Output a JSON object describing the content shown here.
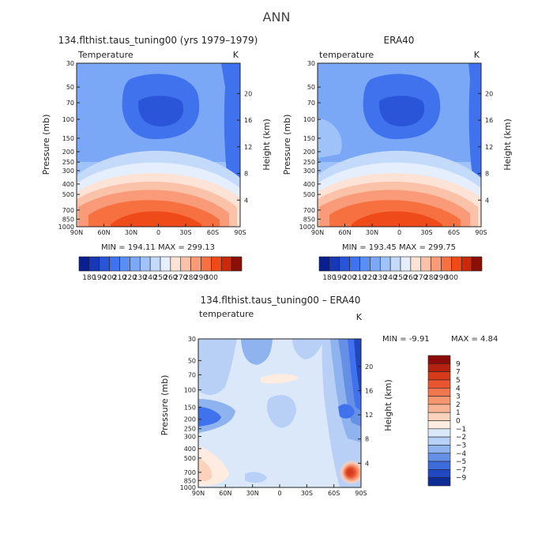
{
  "page": {
    "title": "ANN"
  },
  "chart_data": [
    {
      "type": "heatmap",
      "title": "134.flthist.taus_tuning00 (yrs 1979–1979)",
      "left_label": "Temperature",
      "unit": "K",
      "ylabel": "Pressure (mb)",
      "ylabel_right": "Height (km)",
      "x_ticks": [
        "90N",
        "60N",
        "30N",
        "0",
        "30S",
        "60S",
        "90S"
      ],
      "y_ticks": [
        "30",
        "50",
        "70",
        "100",
        "150",
        "200",
        "250",
        "300",
        "400",
        "500",
        "700",
        "850",
        "1000"
      ],
      "height_ticks": [
        "20",
        "16",
        "12",
        "8",
        "4"
      ],
      "stats": "MIN = 194.11   MAX = 299.13",
      "colorbar": {
        "orientation": "horizontal",
        "labels": [
          "180",
          "190",
          "200",
          "210",
          "220",
          "230",
          "240",
          "250",
          "260",
          "270",
          "280",
          "290",
          "300"
        ],
        "colors": [
          "#0a1f8f",
          "#1838b5",
          "#2a55d8",
          "#3f72ec",
          "#5a8ef3",
          "#7aa8f6",
          "#9fc2f8",
          "#c4dafb",
          "#e4eefd",
          "#fde3d6",
          "#fbc2aa",
          "#f99a78",
          "#f6713f",
          "#ee4a1a",
          "#c92a0c",
          "#8a0f05"
        ]
      }
    },
    {
      "type": "heatmap",
      "title": "ERA40",
      "left_label": "temperature",
      "unit": "K",
      "ylabel": "Pressure (mb)",
      "ylabel_right": "Height (km)",
      "x_ticks": [
        "90N",
        "60N",
        "30N",
        "0",
        "30S",
        "60S",
        "90S"
      ],
      "y_ticks": [
        "30",
        "50",
        "70",
        "100",
        "150",
        "200",
        "250",
        "300",
        "400",
        "500",
        "700",
        "850",
        "1000"
      ],
      "height_ticks": [
        "20",
        "16",
        "12",
        "8",
        "4"
      ],
      "stats": "MIN = 193.45   MAX = 299.75",
      "colorbar": {
        "orientation": "horizontal",
        "labels": [
          "180",
          "190",
          "200",
          "210",
          "220",
          "230",
          "240",
          "250",
          "260",
          "270",
          "280",
          "290",
          "300"
        ],
        "colors": [
          "#0a1f8f",
          "#1838b5",
          "#2a55d8",
          "#3f72ec",
          "#5a8ef3",
          "#7aa8f6",
          "#9fc2f8",
          "#c4dafb",
          "#e4eefd",
          "#fde3d6",
          "#fbc2aa",
          "#f99a78",
          "#f6713f",
          "#ee4a1a",
          "#c92a0c",
          "#8a0f05"
        ]
      }
    },
    {
      "type": "heatmap",
      "title": "134.flthist.taus_tuning00 – ERA40",
      "left_label": "temperature",
      "unit": "K",
      "ylabel": "Pressure (mb)",
      "ylabel_right": "Height (km)",
      "x_ticks": [
        "90N",
        "60N",
        "30N",
        "0",
        "30S",
        "60S",
        "90S"
      ],
      "y_ticks": [
        "30",
        "50",
        "70",
        "100",
        "150",
        "200",
        "250",
        "300",
        "400",
        "500",
        "700",
        "850",
        "1000"
      ],
      "height_ticks": [
        "20",
        "16",
        "12",
        "8",
        "4"
      ],
      "stats_min": "MIN =  -9.91",
      "stats_max": "MAX =   4.84",
      "colorbar": {
        "orientation": "vertical",
        "labels": [
          "9",
          "7",
          "5",
          "4",
          "3",
          "2",
          "1",
          "0",
          "−1",
          "−2",
          "−3",
          "−4",
          "−5",
          "−7",
          "−9"
        ],
        "colors": [
          "#8b0a0a",
          "#b5200f",
          "#d63a1a",
          "#ea5530",
          "#f2764f",
          "#f5966f",
          "#f8b494",
          "#fbd2bb",
          "#fdecdf",
          "#dbe8fa",
          "#b8d0f5",
          "#8fb3ee",
          "#6590e6",
          "#3f6cdc",
          "#2148c2",
          "#0f2c96"
        ]
      }
    }
  ]
}
